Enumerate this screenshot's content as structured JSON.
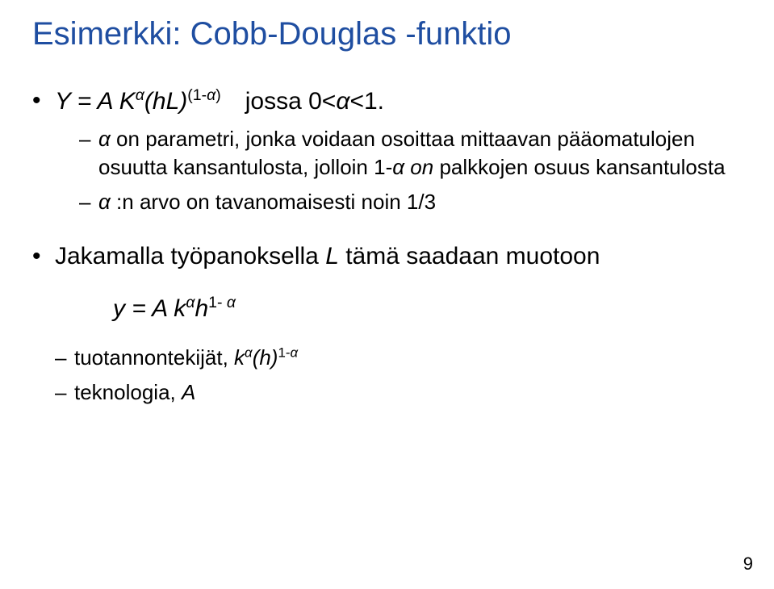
{
  "title_color": "#1f4ea1",
  "title": "Esimerkki: Cobb-Douglas -funktio",
  "bullet1_html": "<span class=\"italic\">Y = A K<span class=\"sup-it\">α</span>(hL)<span class=\"sup\">(1-<span class=\"italic\">α</span>)</span></span> jossa 0&lt;<span class=\"italic\">α</span>&lt;1.",
  "sub1a_html": "<span class=\"italic\">α</span> on parametri, jonka voidaan osoittaa mittaavan pääomatulojen osuutta kansantulosta, jolloin 1-<span class=\"italic\">α on</span> palkkojen osuus kansantulosta",
  "sub1b_html": "<span class=\"italic\">α</span> :n arvo on tavanomaisesti noin 1/3",
  "bullet2_html": "Jakamalla työpanoksella <span class=\"italic\">L</span> tämä saadaan muotoon",
  "equation_html": "y = A k<span class=\"sup-it\">α</span>h<span class=\"sup\">1- <span class=\"italic\">α</span></span>",
  "sub2a_html": "tuotannontekijät, <span class=\"italic\">k<span class=\"sup-it\">α</span>(h)<span class=\"sup\">1-<span class=\"italic\">α</span></span></span>",
  "sub2b_html": "teknologia, <span class=\"italic\">A</span>",
  "page_number": "9"
}
